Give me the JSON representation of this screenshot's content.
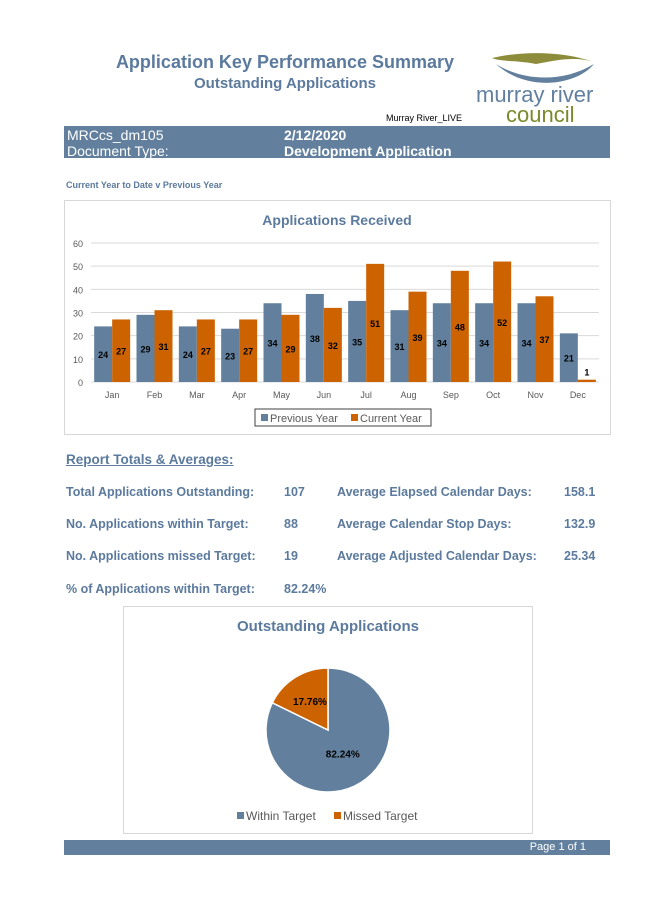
{
  "header": {
    "title": "Application Key Performance Summary",
    "subtitle": "Outstanding Applications",
    "database": "Murray River_LIVE",
    "logo_text_1": "murray river",
    "logo_text_2": "council"
  },
  "info": {
    "report_id": "MRCcs_dm105",
    "date": "2/12/2020",
    "doc_type_label": "Document Type:",
    "doc_type_value": "Development Application"
  },
  "section_caption": "Current Year to Date v Previous Year",
  "colors": {
    "previous": "#62809e",
    "current": "#cc6300",
    "accent": "#5b7a9d"
  },
  "chart_data": [
    {
      "type": "bar",
      "title": "Applications Received",
      "categories": [
        "Jan",
        "Feb",
        "Mar",
        "Apr",
        "May",
        "Jun",
        "Jul",
        "Aug",
        "Sep",
        "Oct",
        "Nov",
        "Dec"
      ],
      "series": [
        {
          "name": "Previous Year",
          "values": [
            24,
            29,
            24,
            23,
            34,
            38,
            35,
            31,
            34,
            34,
            34,
            21
          ]
        },
        {
          "name": "Current Year",
          "values": [
            27,
            31,
            27,
            27,
            29,
            32,
            51,
            39,
            48,
            52,
            37,
            1
          ]
        }
      ],
      "ylim": [
        0,
        60
      ],
      "yticks": [
        "0",
        "10",
        "20",
        "30",
        "40",
        "50",
        "60"
      ],
      "grid": true,
      "legend": "bottom"
    },
    {
      "type": "pie",
      "title": "Outstanding Applications",
      "labels": [
        "Within Target",
        "Missed Target"
      ],
      "values": [
        82.24,
        17.76
      ],
      "data_labels": [
        "82.24%",
        "17.76%"
      ],
      "legend": "bottom"
    }
  ],
  "totals": {
    "heading": "Report Totals & Averages:",
    "rows": [
      {
        "label": "Total Applications Outstanding:",
        "value": "107",
        "label2": "Average Elapsed Calendar Days:",
        "value2": "158.1"
      },
      {
        "label": "No. Applications within Target:",
        "value": "88",
        "label2": "Average Calendar Stop Days:",
        "value2": "132.9"
      },
      {
        "label": "No. Applications missed Target:",
        "value": "19",
        "label2": "Average Adjusted Calendar Days:",
        "value2": "25.34"
      },
      {
        "label": "% of Applications within Target:",
        "value": "82.24%"
      }
    ]
  },
  "footer": {
    "page": "Page 1 of 1"
  }
}
